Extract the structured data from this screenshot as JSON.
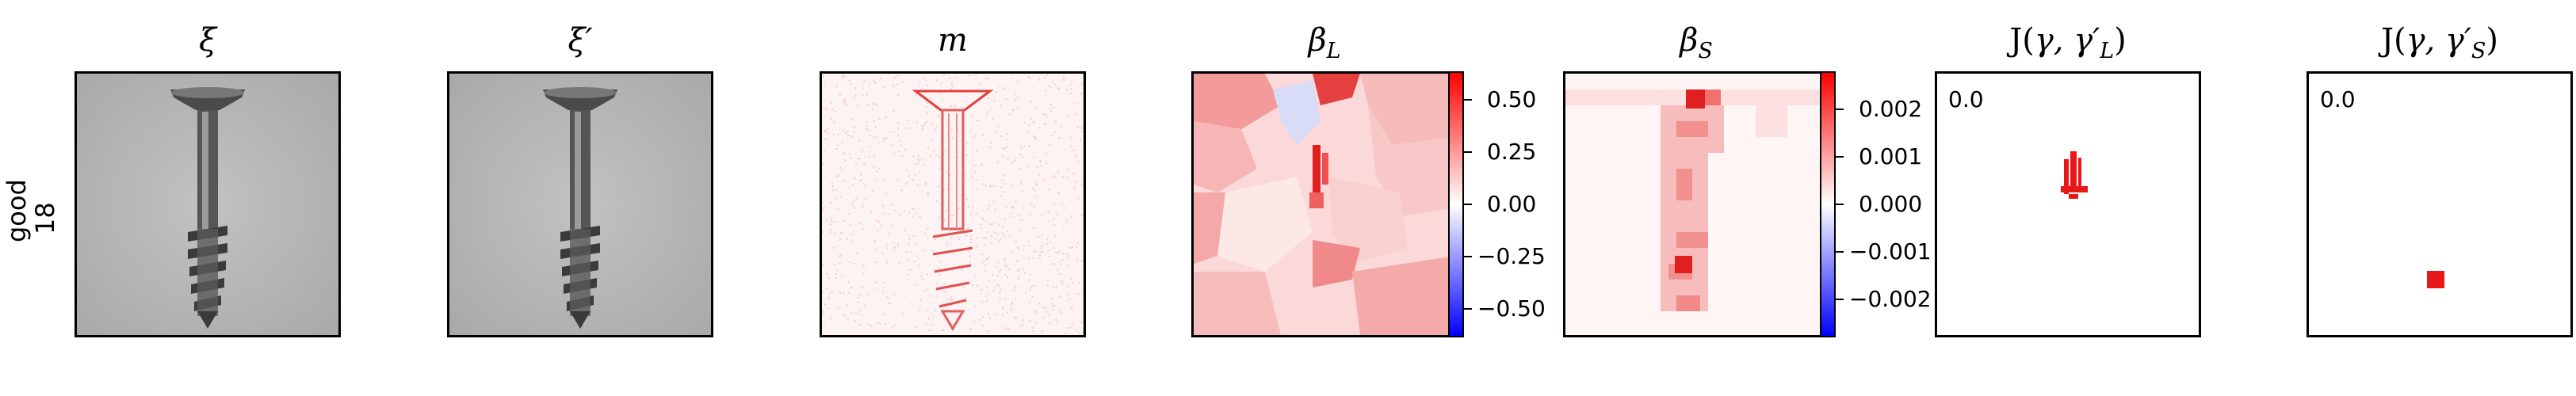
{
  "row_label": [
    "good",
    "18"
  ],
  "titles": {
    "xi": "ξ",
    "xi_prime": "ξ′",
    "m": "m",
    "beta_l_base": "β",
    "beta_l_sub": "L",
    "beta_s_base": "β",
    "beta_s_sub": "S",
    "j_l_prefix": "J(",
    "j_l_mid": "γ, γ′",
    "j_l_sub": "L",
    "j_l_suffix": ")",
    "j_s_prefix": "J(",
    "j_s_mid": "γ, γ′",
    "j_s_sub": "S",
    "j_s_suffix": ")"
  },
  "colorbars": {
    "beta_l_ticks": [
      "0.50",
      "0.25",
      "0.00",
      "−0.25",
      "−0.50"
    ],
    "beta_s_ticks": [
      "0.002",
      "0.001",
      "0.000",
      "−0.001",
      "−0.002"
    ]
  },
  "annotations": {
    "j_l_value": "0.0",
    "j_s_value": "0.0"
  },
  "colors": {
    "image_gray": "#b9b9b9",
    "screw_dark": "#3a3a3a",
    "positive": "#ff0000",
    "negative": "#0000ff"
  }
}
